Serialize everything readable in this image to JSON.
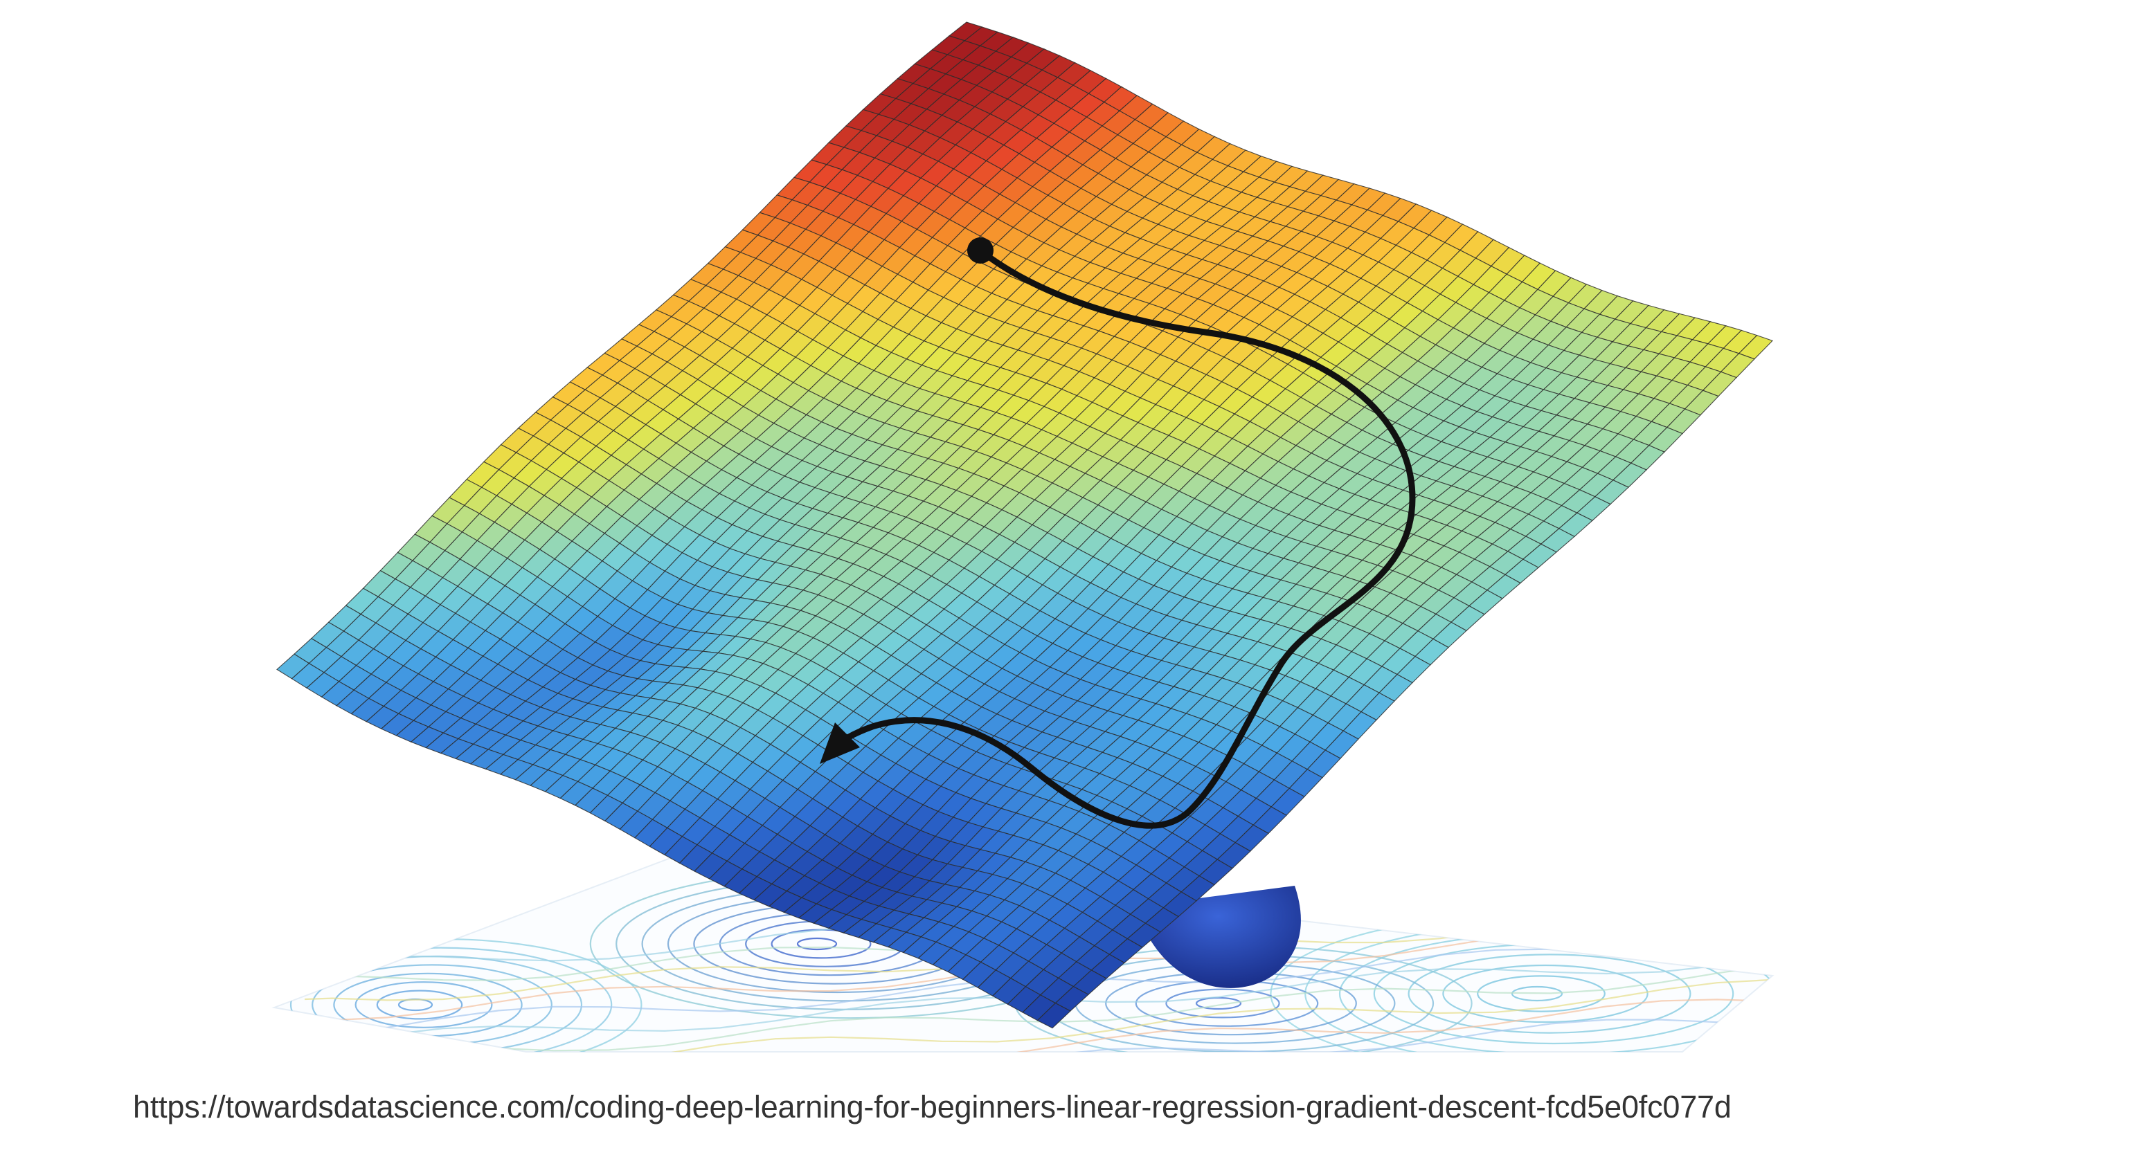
{
  "figure": {
    "colors": {
      "surface_colormap": [
        "#1e3fa6",
        "#2f6fd4",
        "#4aa8e6",
        "#76d0d8",
        "#a7dca0",
        "#e3e64c",
        "#fbc43a",
        "#f5892a",
        "#e6452a",
        "#a61d20"
      ],
      "grid_line": "#2b2b2b",
      "path": "#111111"
    }
  },
  "caption": {
    "source_url": "https://towardsdatascience.com/coding-deep-learning-for-beginners-linear-regression-gradient-descent-fcd5e0fc077d"
  }
}
